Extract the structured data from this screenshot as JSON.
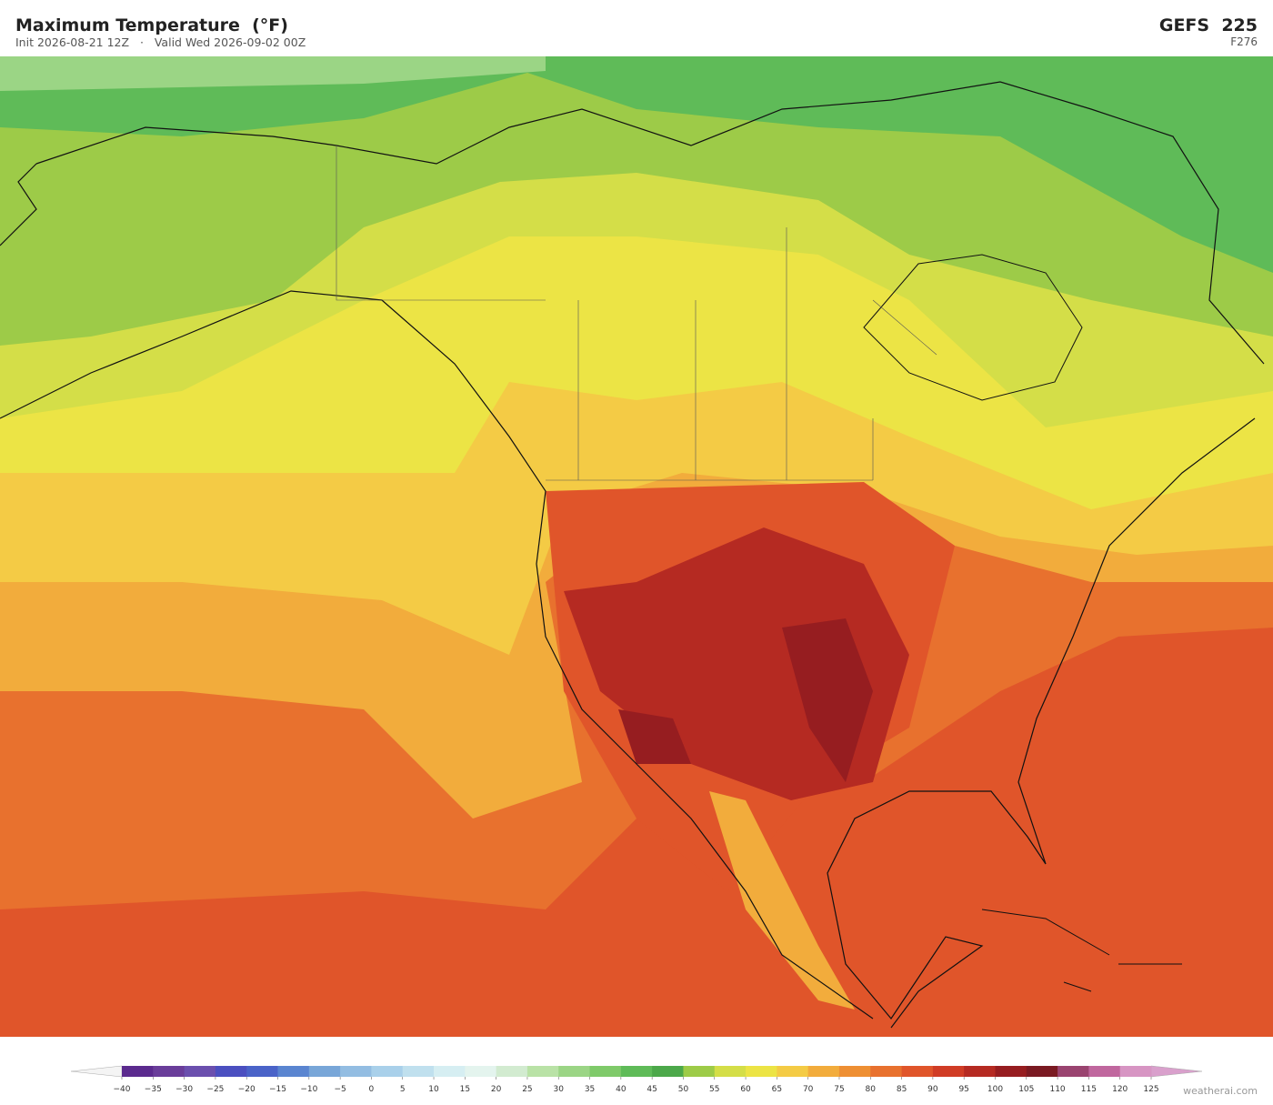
{
  "header": {
    "title": "Maximum Temperature  (°F)",
    "subtitle": "Init 2026-08-21 12Z   ·   Valid Wed 2026-09-02 00Z",
    "model": "GEFS  225",
    "forecast_hour": "F276"
  },
  "colorbar": {
    "ticks": [
      {
        "value": -40,
        "label": "−40"
      },
      {
        "value": -35,
        "label": "−35"
      },
      {
        "value": -30,
        "label": "−30"
      },
      {
        "value": -25,
        "label": "−25"
      },
      {
        "value": -20,
        "label": "−20"
      },
      {
        "value": -15,
        "label": "−15"
      },
      {
        "value": -10,
        "label": "−10"
      },
      {
        "value": -5,
        "label": "−5"
      },
      0,
      5,
      10,
      15,
      20,
      25,
      30,
      35,
      40,
      45,
      50,
      55,
      60,
      65,
      70,
      75,
      80,
      85,
      90,
      95,
      100,
      105,
      110,
      115,
      120,
      125
    ],
    "colors": [
      "#5b2a8e",
      "#6a3d9a",
      "#6b4fae",
      "#4b4fc0",
      "#4a63c8",
      "#5a85d0",
      "#78a6d8",
      "#93bde2",
      "#a9d0ea",
      "#c0e0ee",
      "#d6eef2",
      "#e4f4ee",
      "#d2ebd0",
      "#b9e2a6",
      "#9bd585",
      "#7fca6a",
      "#5fbb58",
      "#4ca84a",
      "#9dcb48",
      "#d4de48",
      "#ece445",
      "#f4cb45",
      "#f2ac3c",
      "#ee8f33",
      "#e8712e",
      "#e0552a",
      "#d03c25",
      "#b52a22",
      "#961d20",
      "#7a1a22",
      "#9a4470",
      "#c0679e",
      "#d795c3"
    ],
    "under_color": "#f4f4f4",
    "over_color": "#d9a0cc"
  },
  "watermark": "weatherai.com"
}
